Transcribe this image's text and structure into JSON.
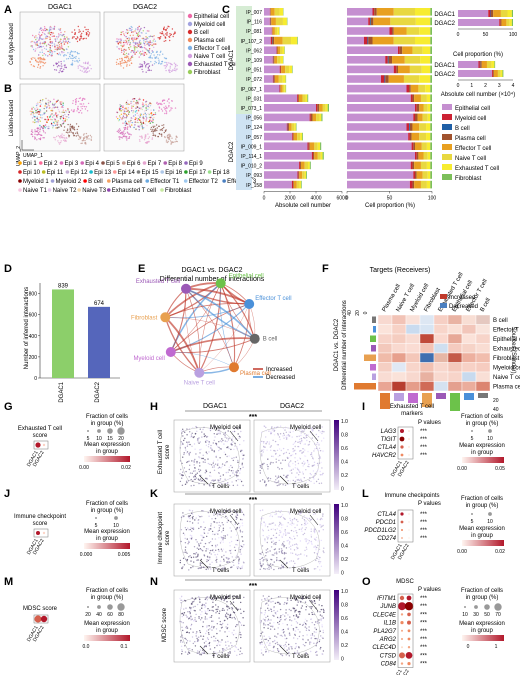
{
  "panels": {
    "A": {
      "letter": "A",
      "titles": [
        "DGAC1",
        "DGAC2"
      ],
      "side_label": "Cell type-based",
      "legend": [
        {
          "label": "Epithelial cell",
          "color": "#ee6aa7"
        },
        {
          "label": "Myeloid cell",
          "color": "#a3a3e0"
        },
        {
          "label": "B cell",
          "color": "#d62c2c"
        },
        {
          "label": "Plasma cell",
          "color": "#f08a5d"
        },
        {
          "label": "Effector T cell",
          "color": "#7fb2e5"
        },
        {
          "label": "Naive T cell",
          "color": "#d3a0e0"
        },
        {
          "label": "Exhausted T cell",
          "color": "#9b59b6"
        },
        {
          "label": "Fibroblast",
          "color": "#9acd5a"
        }
      ]
    },
    "B": {
      "letter": "B",
      "side_label": "Leiden-based",
      "umap_x": "UMAP_1",
      "umap_y": "UMAP_2",
      "legend": [
        {
          "label": "Epi 1",
          "color": "#ffa500"
        },
        {
          "label": "Epi 2",
          "color": "#ff6b9a"
        },
        {
          "label": "Epi 3",
          "color": "#e377c2"
        },
        {
          "label": "Epi 4",
          "color": "#d46ab8"
        },
        {
          "label": "Epi 5",
          "color": "#8c564b"
        },
        {
          "label": "Epi 6",
          "color": "#c49c94"
        },
        {
          "label": "Epi 7",
          "color": "#e7a5d0"
        },
        {
          "label": "Epi 8",
          "color": "#b05fb0"
        },
        {
          "label": "Epi 9",
          "color": "#9467bd"
        },
        {
          "label": "Epi 10",
          "color": "#d62728"
        },
        {
          "label": "Epi 11",
          "color": "#bcbd22"
        },
        {
          "label": "Epi 12",
          "color": "#c5b0d5"
        },
        {
          "label": "Epi 13",
          "color": "#17becf"
        },
        {
          "label": "Epi 14",
          "color": "#ff9896"
        },
        {
          "label": "Epi 15",
          "color": "#7f7f7f"
        },
        {
          "label": "Epi 16",
          "color": "#aec7e8"
        },
        {
          "label": "Epi 17",
          "color": "#2ca02c"
        },
        {
          "label": "Epi 18",
          "color": "#98df8a"
        },
        {
          "label": "Myeloid 1",
          "color": "#8b0000"
        },
        {
          "label": "Myeloid 2",
          "color": "#a0a0d8"
        },
        {
          "label": "B cell",
          "color": "#ff0000"
        },
        {
          "label": "Plasma cell",
          "color": "#f4a261"
        },
        {
          "label": "Effector T1",
          "color": "#6aa9e0"
        },
        {
          "label": "Effector T2",
          "color": "#9ec9f0"
        },
        {
          "label": "Effector T3",
          "color": "#4a7fc0"
        },
        {
          "label": "Naive T1",
          "color": "#f7c6e0"
        },
        {
          "label": "Naive T2",
          "color": "#e8c8f0"
        },
        {
          "label": "Naive T3",
          "color": "#f6d7a7"
        },
        {
          "label": "Exhausted T cell",
          "color": "#8e44ad"
        },
        {
          "label": "Fibroblast",
          "color": "#c7e9a0"
        }
      ]
    },
    "C": {
      "letter": "C",
      "group1": "DGAC1",
      "group2": "DGAC2",
      "samples_g1": [
        "IP_007",
        "IP_116",
        "IP_081",
        "IP_107_2",
        "IP_062",
        "IP_109",
        "IP_051",
        "IP_072",
        "IP_067_1",
        "IP_031",
        "IP_073_1",
        "IP_056"
      ],
      "samples_g2": [
        "IP_124",
        "IP_057",
        "IP_009_1",
        "IP_114_1",
        "IP_010_2",
        "IP_093",
        "IP_158"
      ],
      "xlabel_abs": "Absolute cell number",
      "xlabel_prop": "Cell proportion (%)",
      "xlabel_abs_small": "Absolute cell number (×10⁴)",
      "xlabel_prop_small": "Cell proportion (%)",
      "ticks_abs": [
        "0",
        "2000",
        "4000",
        "6000"
      ],
      "ticks_prop": [
        "0",
        "50",
        "100"
      ],
      "ticks_prop_small": [
        "0",
        "50",
        "100"
      ],
      "ticks_abs_small": [
        "0",
        "1",
        "2",
        "3",
        "4"
      ],
      "legend": [
        {
          "label": "Epithelial cell",
          "color": "#c58fd0"
        },
        {
          "label": "Myeloid cell",
          "color": "#cc2233"
        },
        {
          "label": "B cell",
          "color": "#1f5fa6"
        },
        {
          "label": "Plasma cell",
          "color": "#a0522d"
        },
        {
          "label": "Effector T cell",
          "color": "#e8a020"
        },
        {
          "label": "Naive T cell",
          "color": "#e8d840"
        },
        {
          "label": "Exhausted T cell",
          "color": "#f7ec30"
        },
        {
          "label": "Fibroblast",
          "color": "#7cbf5a"
        }
      ]
    },
    "D": {
      "letter": "D",
      "ylabel": "Number of inferred interactions",
      "ticks": [
        "0",
        "200",
        "400",
        "600",
        "800"
      ],
      "ymax": 900
    },
    "E": {
      "letter": "E",
      "title_line1": "DGAC1 vs. DGAC2",
      "title_line2": "Differential number of interactions",
      "nodes": [
        {
          "label": "Epithelial cell",
          "color": "#6cc24a"
        },
        {
          "label": "Effector T cell",
          "color": "#4a90d9"
        },
        {
          "label": "B cell",
          "color": "#666666"
        },
        {
          "label": "Plasma cell",
          "color": "#e07a30"
        },
        {
          "label": "Naive T cell",
          "color": "#b9a0e0"
        },
        {
          "label": "Myeloid cell",
          "color": "#c06ad0"
        },
        {
          "label": "Fibroblast",
          "color": "#e8a050"
        },
        {
          "label": "Exhausted T cell",
          "color": "#9b59b6"
        }
      ],
      "legend_inc": "Increased",
      "legend_dec": "Decreased"
    },
    "F": {
      "letter": "F",
      "col_title": "Targets (Receivers)",
      "row_title": "Sources (Sender)",
      "left_title_line1": "DGAC1 vs. DGAC2",
      "left_title_line2": "Differential number of interactions",
      "cols": [
        "Plasma cell",
        "Naive T cell",
        "Myeloid cell",
        "Fibroblast",
        "Exhausted T cell",
        "Epithelial cell",
        "Effector T cell",
        "B cell"
      ],
      "rows": [
        "B cell",
        "Effector T cell",
        "Epithelial cell",
        "Exhausted T cell",
        "Fibroblast",
        "Myeloid cell",
        "Naive T cell",
        "Plasma cell"
      ],
      "legend_inc": "Increased",
      "legend_dec": "Decreased",
      "ticks_top": [
        "40",
        "20",
        "0"
      ],
      "ticks_bottom": [
        "20",
        "40"
      ]
    },
    "G": {
      "letter": "G",
      "label_line1": "Exhausted T cell",
      "label_line2": "score",
      "groups": [
        "DGAC1",
        "DGAC2"
      ],
      "frac_title_line1": "Fraction of cells",
      "frac_title_line2": "in group (%)",
      "frac_ticks": [
        "5",
        "10",
        "15",
        "20"
      ],
      "mean_title_line1": "Mean expression",
      "mean_title_line2": "in group",
      "mean_ticks": [
        "0.00",
        "0.02"
      ]
    },
    "H": {
      "letter": "H",
      "titles": [
        "DGAC1",
        "DGAC2"
      ],
      "stars": "***",
      "side_label_line1": "Exhausted T cell",
      "side_label_line2": "score",
      "annot_myeloid": "Myeloid cell",
      "annot_t": "T cells",
      "scale_ticks": [
        "1.0",
        "0.8",
        "0.6",
        "0.4",
        "0.2",
        "0"
      ]
    },
    "I": {
      "letter": "I",
      "title_line1": "Exhausted T cell",
      "title_line2": "markers",
      "pval_title": "P values",
      "genes": [
        "LAG3",
        "TIGIT",
        "CTLA4",
        "HAVCR2"
      ],
      "stars": [
        "***",
        "***",
        "***",
        "***"
      ],
      "groups": [
        "DGAC1",
        "DGAC2"
      ],
      "frac_title_line1": "Fraction of cells",
      "frac_title_line2": "in group (%)",
      "frac_ticks": [
        "5",
        "10"
      ],
      "mean_title_line1": "Mean expression",
      "mean_title_line2": "in group",
      "mean_ticks": [
        "0.00",
        "0.05"
      ]
    },
    "J": {
      "letter": "J",
      "label_line1": "Immune checkpoint",
      "label_line2": "score",
      "groups": [
        "DGAC1",
        "DGAC2"
      ],
      "frac_title_line1": "Fraction of cells",
      "frac_title_line2": "in group (%)",
      "frac_ticks": [
        "5",
        "10"
      ],
      "mean_title_line1": "Mean expression",
      "mean_title_line2": "in group",
      "mean_ticks": [
        "0.000",
        "0.005"
      ]
    },
    "K": {
      "letter": "K",
      "stars": "***",
      "side_label_line1": "Immune checkpoint",
      "side_label_line2": "score",
      "annot_myeloid": "Myeloid cell",
      "annot_t": "T cells",
      "scale_ticks": [
        "1.0",
        "0.8",
        "0.6",
        "0.4",
        "0.2",
        "0"
      ]
    },
    "L": {
      "letter": "L",
      "title": "Immune checkpoints",
      "pval_title": "P values",
      "genes": [
        "CTLA4",
        "PDCD1",
        "PDCD1LG2",
        "CD274"
      ],
      "stars": [
        "***",
        "***",
        "***",
        "***"
      ],
      "groups": [
        "DGAC1",
        "DGAC2"
      ],
      "frac_title_line1": "Fraction of cells",
      "frac_title_line2": "in group (%)",
      "frac_ticks": [
        "5",
        "10"
      ],
      "mean_title_line1": "Mean expression",
      "mean_title_line2": "in group",
      "mean_ticks": [
        "0.00",
        "0.02"
      ]
    },
    "M": {
      "letter": "M",
      "label": "MDSC score",
      "groups": [
        "DGAC1",
        "DGAC2"
      ],
      "frac_title_line1": "Fraction of cells",
      "frac_title_line2": "in group (%)",
      "frac_ticks": [
        "20",
        "40",
        "60",
        "80"
      ],
      "mean_title_line1": "Mean expression",
      "mean_title_line2": "in group",
      "mean_ticks": [
        "0.0",
        "0.1"
      ]
    },
    "N": {
      "letter": "N",
      "stars": "***",
      "side_label": "MDSC score",
      "annot_myeloid": "Myeloid cell",
      "annot_t": "T cells",
      "scale_ticks": [
        "1.0",
        "0.8",
        "0.6",
        "0.4",
        "0.2",
        "0"
      ]
    },
    "O": {
      "letter": "O",
      "title": "MDSC",
      "pval_title": "P values",
      "genes": [
        "IFITM1",
        "JUNB",
        "CLEC4E",
        "IL1B",
        "PLA2G7",
        "ARG2",
        "CLEC4D",
        "CTSD",
        "CD84"
      ],
      "stars": [
        "***",
        "***",
        "***",
        "***",
        "***",
        "***",
        "***",
        "***",
        "***"
      ],
      "groups": [
        "DGAC1",
        "DGAC2"
      ],
      "frac_title_line1": "Fraction of cells",
      "frac_title_line2": "in group (%)",
      "frac_ticks": [
        "10",
        "30",
        "50",
        "70"
      ],
      "mean_title_line1": "Mean expression",
      "mean_title_line2": "in group",
      "mean_ticks": [
        "0",
        "1"
      ]
    }
  },
  "chart_data": [
    {
      "type": "bar",
      "panel": "D",
      "categories": [
        "DGAC1",
        "DGAC2"
      ],
      "values": [
        839,
        674
      ],
      "colors": [
        "#8ccf6a",
        "#5566bb"
      ],
      "ylabel": "Number of inferred interactions",
      "ylim": [
        0,
        900
      ]
    },
    {
      "type": "bar",
      "panel": "C-absolute",
      "orientation": "horizontal-stacked",
      "categories": [
        "IP_007",
        "IP_116",
        "IP_081",
        "IP_107_2",
        "IP_062",
        "IP_109",
        "IP_051",
        "IP_072",
        "IP_067_1",
        "IP_031",
        "IP_073_1",
        "IP_056",
        "IP_124",
        "IP_057",
        "IP_009_1",
        "IP_114_1",
        "IP_010_2",
        "IP_093",
        "IP_158"
      ],
      "totals": [
        1500,
        1800,
        1200,
        2600,
        1600,
        1500,
        2200,
        1700,
        1700,
        3400,
        5000,
        4500,
        2500,
        3000,
        4400,
        4600,
        3600,
        3300,
        2900
      ],
      "xlabel": "Absolute cell number",
      "xlim": [
        0,
        6000
      ]
    },
    {
      "type": "bar",
      "panel": "C-proportion",
      "orientation": "horizontal-stacked",
      "series_names": [
        "Epithelial cell",
        "Myeloid cell",
        "B cell",
        "Plasma cell",
        "Effector T cell",
        "Naive T cell",
        "Exhausted T cell",
        "Fibroblast"
      ],
      "rows": [
        [
          30,
          2,
          0,
          3,
          20,
          25,
          18,
          2
        ],
        [
          25,
          2,
          1,
          3,
          20,
          30,
          17,
          2
        ],
        [
          50,
          3,
          0,
          2,
          15,
          15,
          13,
          2
        ],
        [
          20,
          4,
          1,
          5,
          25,
          25,
          18,
          2
        ],
        [
          60,
          2,
          0,
          3,
          12,
          12,
          9,
          2
        ],
        [
          45,
          3,
          1,
          4,
          15,
          18,
          12,
          2
        ],
        [
          55,
          3,
          0,
          2,
          14,
          14,
          10,
          2
        ],
        [
          40,
          4,
          1,
          4,
          18,
          18,
          13,
          2
        ],
        [
          70,
          3,
          0,
          2,
          9,
          8,
          6,
          2
        ],
        [
          75,
          2,
          0,
          2,
          8,
          7,
          4,
          2
        ],
        [
          80,
          2,
          0,
          3,
          5,
          5,
          3,
          2
        ],
        [
          78,
          2,
          0,
          3,
          6,
          6,
          3,
          2
        ],
        [
          70,
          3,
          1,
          3,
          8,
          8,
          5,
          2
        ],
        [
          72,
          2,
          0,
          2,
          9,
          8,
          5,
          2
        ],
        [
          76,
          2,
          0,
          2,
          8,
          6,
          4,
          2
        ],
        [
          80,
          2,
          0,
          2,
          6,
          5,
          3,
          2
        ],
        [
          75,
          2,
          0,
          2,
          8,
          7,
          4,
          2
        ],
        [
          78,
          2,
          0,
          2,
          7,
          6,
          3,
          2
        ],
        [
          74,
          3,
          0,
          2,
          8,
          7,
          4,
          2
        ]
      ],
      "xlabel": "Cell proportion (%)",
      "xlim": [
        0,
        100
      ]
    },
    {
      "type": "bar",
      "panel": "C-summary",
      "orientation": "horizontal-stacked",
      "categories": [
        "DGAC1",
        "DGAC2"
      ],
      "proportion_rows": [
        [
          55,
          4,
          1,
          4,
          14,
          12,
          8,
          2
        ],
        [
          75,
          2,
          0,
          2,
          9,
          6,
          4,
          2
        ]
      ],
      "absolute_x1e4": [
        2.7,
        3.3
      ]
    }
  ]
}
